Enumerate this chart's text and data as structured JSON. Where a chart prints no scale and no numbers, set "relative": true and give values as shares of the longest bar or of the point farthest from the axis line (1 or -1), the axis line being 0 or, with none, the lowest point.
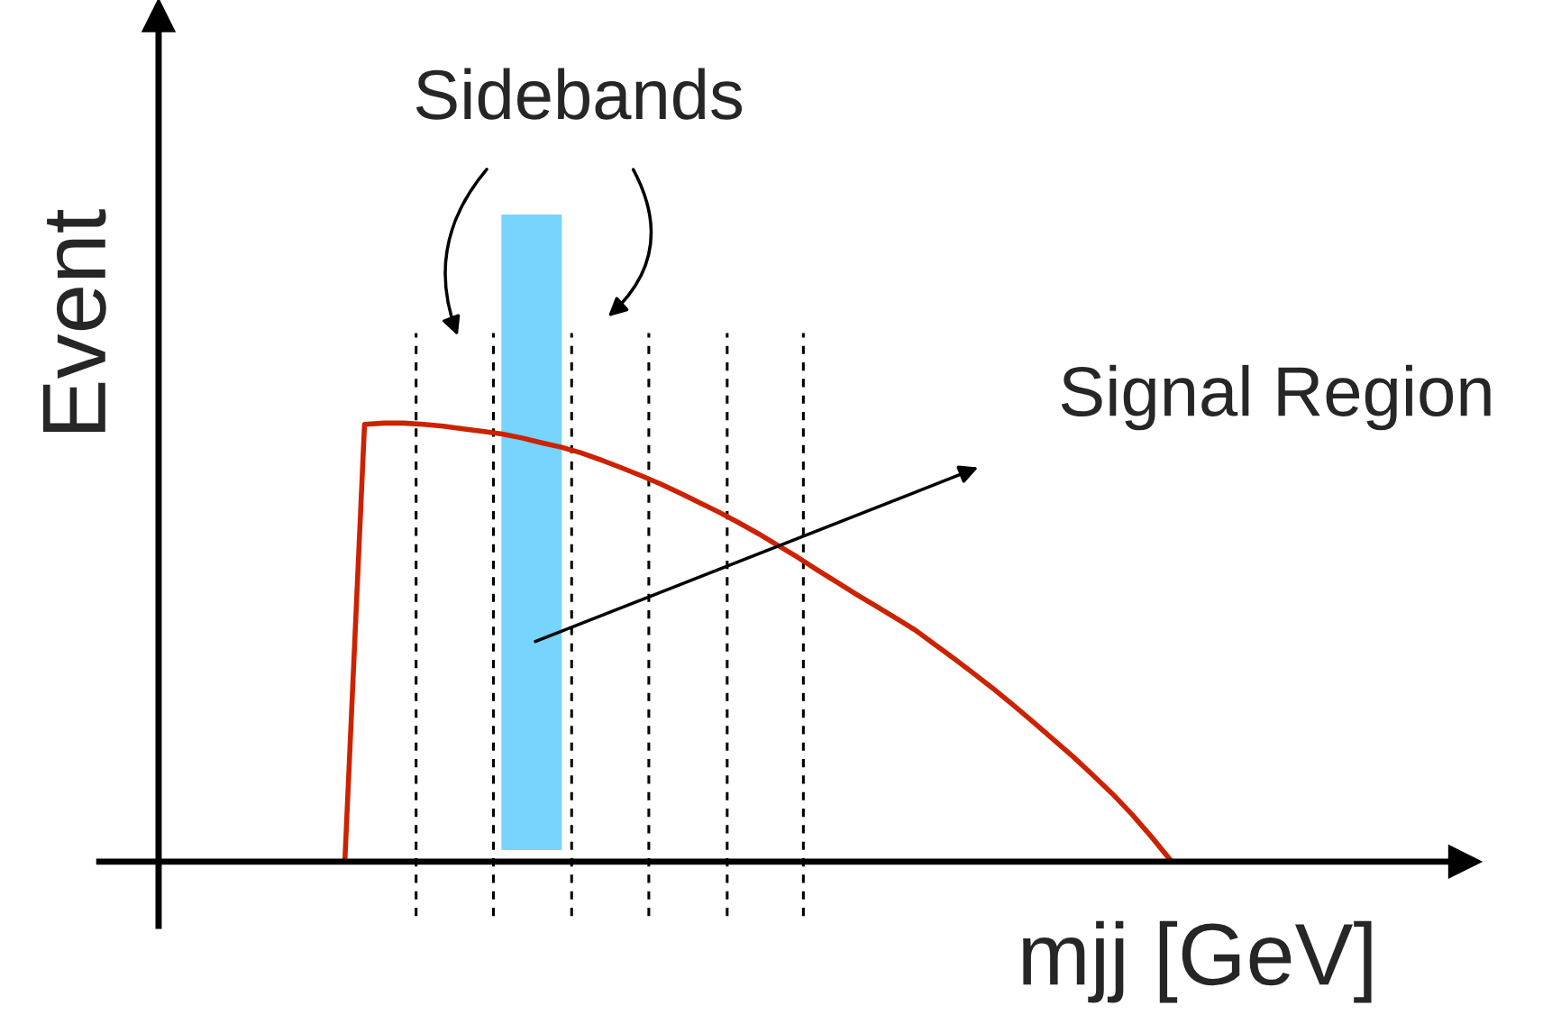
{
  "chart_data": {
    "type": "line",
    "relative": true,
    "xlabel": "mjj [GeV]",
    "ylabel": "Event",
    "categories": [
      null,
      null,
      null,
      null,
      null,
      null,
      null,
      null,
      null,
      null,
      null,
      null,
      null,
      null,
      null,
      null,
      null,
      null,
      null,
      null,
      null,
      null,
      null,
      null,
      null,
      null,
      null,
      null,
      null,
      null,
      null,
      null,
      null,
      null,
      null,
      null,
      null,
      null,
      null,
      null,
      null,
      null,
      null
    ],
    "series": [
      {
        "color": "#cc2200",
        "values": [
          0,
          0.997,
          1.0,
          1.0,
          0.997,
          0.993,
          0.987,
          0.981,
          0.975,
          0.966,
          0.955,
          0.945,
          0.932,
          0.916,
          0.899,
          0.881,
          0.862,
          0.841,
          0.819,
          0.797,
          0.773,
          0.748,
          0.721,
          0.694,
          0.665,
          0.637,
          0.609,
          0.582,
          0.555,
          0.527,
          0.494,
          0.461,
          0.427,
          0.392,
          0.355,
          0.317,
          0.278,
          0.239,
          0.197,
          0.154,
          0.107,
          0.055,
          0
        ]
      }
    ],
    "annotations": [
      "Sidebands",
      "Signal Region"
    ]
  }
}
